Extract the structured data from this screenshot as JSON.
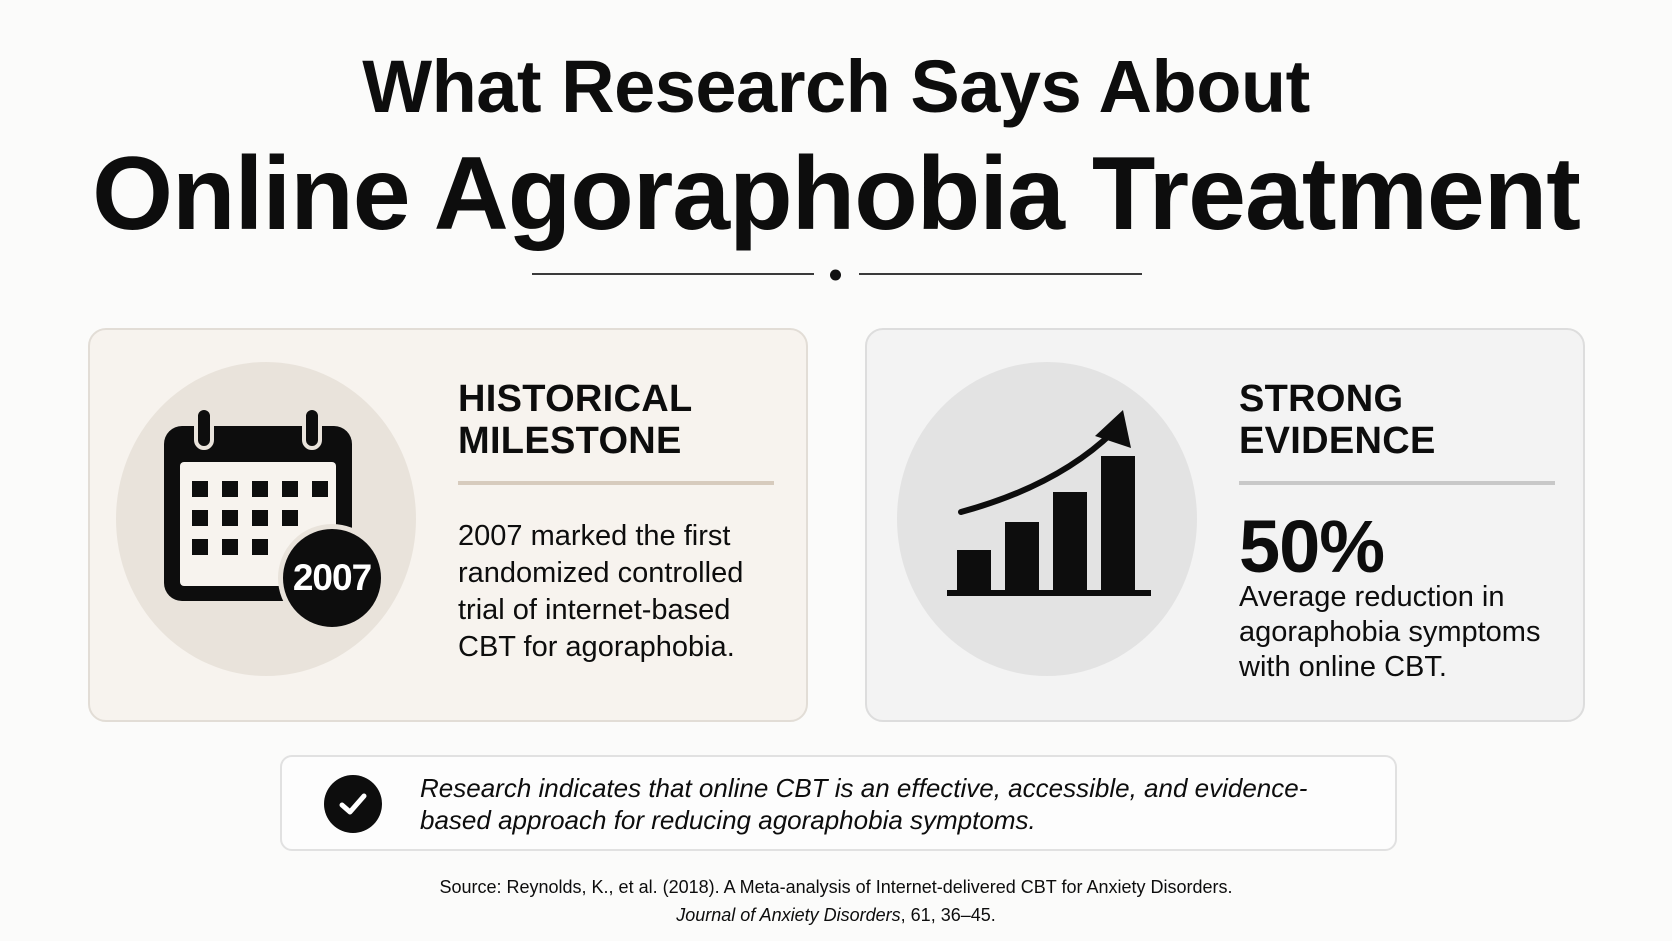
{
  "title": {
    "line1": "What Research Says About",
    "line2": "Online Agoraphobia Treatment"
  },
  "cards": {
    "milestone": {
      "heading_line1": "HISTORICAL",
      "heading_line2": "MILESTONE",
      "icon": "calendar-icon",
      "year_badge": "2007",
      "body": "2007 marked the first randomized controlled trial of internet-based CBT for agoraphobia."
    },
    "evidence": {
      "heading_line1": "STRONG",
      "heading_line2": "EVIDENCE",
      "icon": "growth-chart-icon",
      "stat_value": "50%",
      "stat_caption": "Average reduction in agoraphobia symptoms with online CBT."
    }
  },
  "conclusion": {
    "icon": "check-circle-icon",
    "text": "Research indicates that online CBT is an effective, accessible, and evidence-based approach for reducing agoraphobia symptoms."
  },
  "source": {
    "line1": "Source: Reynolds, K., et al. (2018). A Meta-analysis of Internet-delivered CBT for Anxiety Disorders.",
    "journal": "Journal of Anxiety Disorders",
    "citation_tail": ", 61, 36–45."
  },
  "colors": {
    "background": "#fbfbfa",
    "milestone_card": "#f7f3ee",
    "evidence_card": "#f3f3f3",
    "ink": "#0d0d0d"
  }
}
